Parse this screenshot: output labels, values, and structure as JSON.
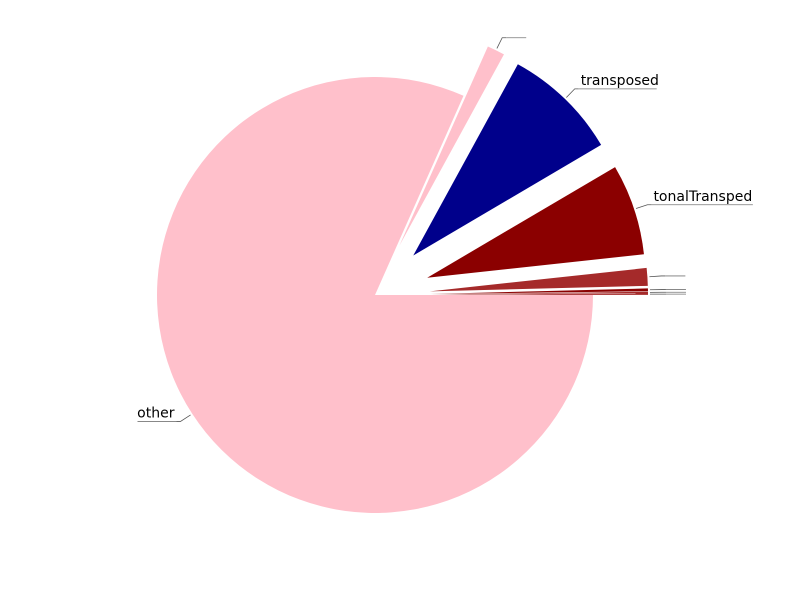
{
  "chart_data": {
    "type": "pie",
    "start_angle_deg": 0,
    "direction": "clockwise",
    "slices": [
      {
        "label": "other",
        "value": 81.0,
        "color": "#ffc0cb",
        "explode": false
      },
      {
        "label": "",
        "value": 1.3,
        "color": "#ffc0cb",
        "explode": true
      },
      {
        "label": "transposed",
        "value": 8.5,
        "color": "#00008b",
        "explode": true
      },
      {
        "label": "tonalTransped",
        "value": 6.7,
        "color": "#8b0000",
        "explode": true
      },
      {
        "label": "",
        "value": 1.3,
        "color": "#a52a2a",
        "explode": true
      },
      {
        "label": "",
        "value": 0.2,
        "color": "#8b0000",
        "explode": true
      },
      {
        "label": "",
        "value": 0.1,
        "color": "#a52a2a",
        "explode": true
      },
      {
        "label": "",
        "value": 0.1,
        "color": "#a52a2a",
        "explode": true
      }
    ],
    "legend": "none",
    "label_style": "outside with leader lines"
  }
}
